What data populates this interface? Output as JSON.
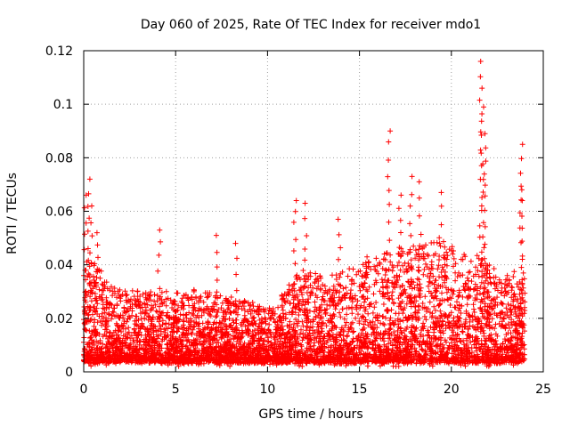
{
  "chart_data": {
    "type": "scatter",
    "title": "Day 060 of 2025, Rate Of TEC Index for receiver mdo1",
    "xlabel": "GPS time / hours",
    "ylabel": "ROTI / TECUs",
    "xlim": [
      0,
      25
    ],
    "ylim": [
      0,
      0.12
    ],
    "xticks": [
      0,
      5,
      10,
      15,
      20,
      25
    ],
    "xtick_labels": [
      "0",
      "5",
      "10",
      "15",
      "20",
      "25"
    ],
    "yticks": [
      0,
      0.02,
      0.04,
      0.06,
      0.08,
      0.1,
      0.12
    ],
    "ytick_labels": [
      "0",
      "0.02",
      "0.04",
      "0.06",
      "0.08",
      "0.1",
      "0.12"
    ],
    "grid": true,
    "marker": "+",
    "series_color": "#ff0000",
    "sample_range_hours": [
      0,
      24
    ],
    "peaks": [
      {
        "x": 0.1,
        "y": 0.066
      },
      {
        "x": 0.3,
        "y": 0.072
      },
      {
        "x": 0.4,
        "y": 0.062
      },
      {
        "x": 0.7,
        "y": 0.052
      },
      {
        "x": 4.1,
        "y": 0.053
      },
      {
        "x": 7.2,
        "y": 0.051
      },
      {
        "x": 8.3,
        "y": 0.048
      },
      {
        "x": 11.5,
        "y": 0.064
      },
      {
        "x": 12.1,
        "y": 0.063
      },
      {
        "x": 13.9,
        "y": 0.057
      },
      {
        "x": 16.6,
        "y": 0.09
      },
      {
        "x": 17.2,
        "y": 0.066
      },
      {
        "x": 17.8,
        "y": 0.073
      },
      {
        "x": 18.3,
        "y": 0.071
      },
      {
        "x": 19.4,
        "y": 0.067
      },
      {
        "x": 21.6,
        "y": 0.116
      },
      {
        "x": 21.7,
        "y": 0.099
      },
      {
        "x": 21.8,
        "y": 0.089
      },
      {
        "x": 23.8,
        "y": 0.085
      },
      {
        "x": 23.9,
        "y": 0.068
      }
    ]
  }
}
